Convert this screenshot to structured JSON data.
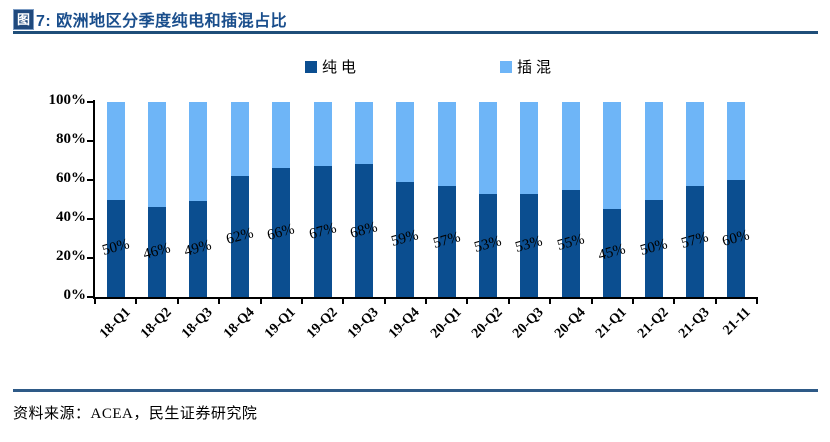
{
  "header": {
    "badge": "图",
    "title": "7: 欧洲地区分季度纯电和插混占比"
  },
  "footer": {
    "source": "资料来源：ACEA，民生证券研究院"
  },
  "colors": {
    "title_text": "#1A4E8C",
    "badge_bg": "#1F497D",
    "title_rule": "#1F4E79",
    "footer_rule": "#2E5A87",
    "bev": "#0B4E90",
    "phev": "#6EB5F7",
    "axis": "#000000"
  },
  "chart_data": {
    "type": "bar",
    "stacked": true,
    "title": "欧洲地区分季度纯电和插混占比",
    "categories": [
      "18-Q1",
      "18-Q2",
      "18-Q3",
      "18-Q4",
      "19-Q1",
      "19-Q2",
      "19-Q3",
      "19-Q4",
      "20-Q1",
      "20-Q2",
      "20-Q3",
      "20-Q4",
      "21-Q1",
      "21-Q2",
      "21-Q3",
      "21-11"
    ],
    "series": [
      {
        "name": "纯电",
        "color": "#0B4E90",
        "values": [
          50,
          46,
          49,
          62,
          66,
          67,
          68,
          59,
          57,
          53,
          53,
          55,
          45,
          50,
          57,
          60
        ],
        "data_labels": [
          "50%",
          "46%",
          "49%",
          "62%",
          "66%",
          "67%",
          "68%",
          "59%",
          "57%",
          "53%",
          "53%",
          "55%",
          "45%",
          "50%",
          "57%",
          "60%"
        ]
      },
      {
        "name": "插混",
        "color": "#6EB5F7",
        "values": [
          50,
          54,
          51,
          38,
          34,
          33,
          32,
          41,
          43,
          47,
          47,
          45,
          55,
          50,
          43,
          40
        ]
      }
    ],
    "y_ticks": [
      "0%",
      "20%",
      "40%",
      "60%",
      "80%",
      "100%"
    ],
    "y_tick_values": [
      0,
      20,
      40,
      60,
      80,
      100
    ],
    "ylim": [
      0,
      100
    ],
    "grid": false,
    "legend_position": "top"
  }
}
